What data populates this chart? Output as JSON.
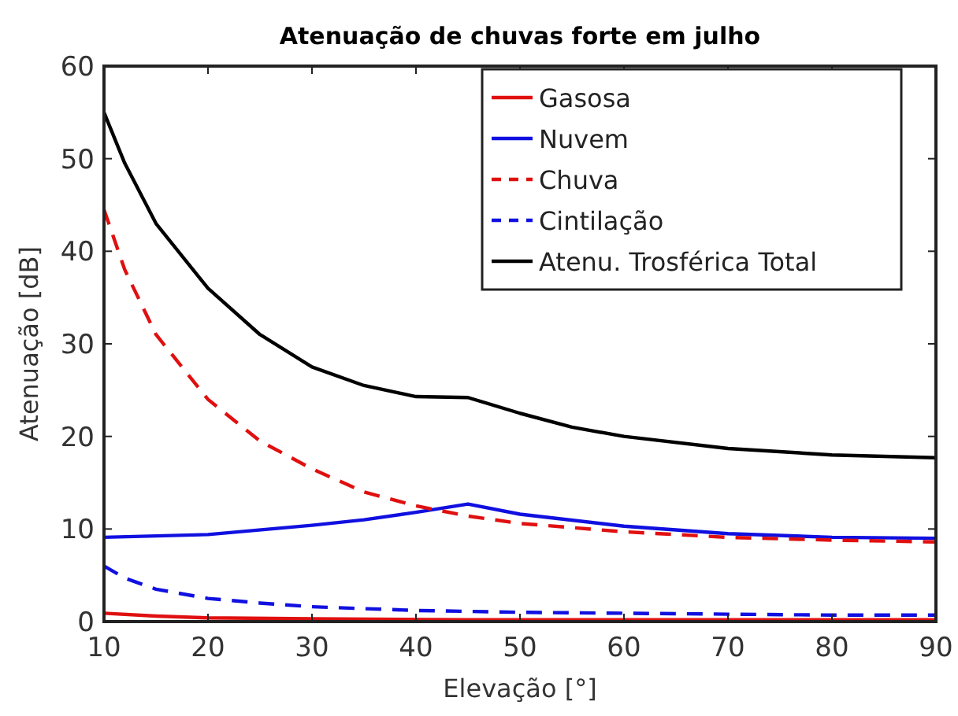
{
  "chart_data": {
    "type": "line",
    "title": "Atenuação de chuvas forte em julho",
    "xlabel": "Elevação  [°]",
    "ylabel": "Atenuação  [dB]",
    "xlim": [
      10,
      90
    ],
    "xticks": [
      10,
      20,
      30,
      40,
      50,
      60,
      70,
      80,
      90
    ],
    "ylim": [
      0,
      60
    ],
    "yticks": [
      0,
      10,
      20,
      30,
      40,
      50,
      60
    ],
    "grid": false,
    "legend": "top right",
    "marker": "none",
    "series": [
      {
        "name": "Gasosa",
        "color": "#e01010",
        "line_style": "solid",
        "x": [
          10,
          15,
          20,
          30,
          45,
          60,
          90
        ],
        "values": [
          0.9,
          0.6,
          0.4,
          0.3,
          0.2,
          0.2,
          0.2
        ]
      },
      {
        "name": "Nuvem",
        "color": "#1010e0",
        "line_style": "solid",
        "x": [
          10,
          20,
          30,
          35,
          40,
          45,
          50,
          60,
          70,
          80,
          90
        ],
        "values": [
          9.1,
          9.4,
          10.4,
          11,
          11.8,
          12.7,
          11.6,
          10.3,
          9.5,
          9.1,
          9.0
        ]
      },
      {
        "name": "Chuva",
        "color": "#e01010",
        "line_style": "dashed",
        "x": [
          10,
          12,
          15,
          20,
          25,
          30,
          35,
          40,
          45,
          50,
          60,
          70,
          80,
          90
        ],
        "values": [
          44.5,
          38,
          31,
          24,
          19.5,
          16.5,
          14,
          12.5,
          11.4,
          10.6,
          9.7,
          9.1,
          8.8,
          8.6
        ]
      },
      {
        "name": "Cintilação",
        "color": "#1010e0",
        "line_style": "dashed",
        "x": [
          10,
          12,
          15,
          20,
          25,
          30,
          40,
          50,
          60,
          70,
          80,
          90
        ],
        "values": [
          6,
          4.7,
          3.5,
          2.5,
          2,
          1.6,
          1.2,
          1,
          0.9,
          0.8,
          0.7,
          0.7
        ]
      },
      {
        "name": "Atenu. Trosférica Total",
        "color": "#000000",
        "line_style": "solid",
        "x": [
          10,
          12,
          15,
          20,
          25,
          30,
          35,
          40,
          45,
          50,
          55,
          60,
          70,
          80,
          90
        ],
        "values": [
          55,
          49.5,
          43,
          36,
          31,
          27.5,
          25.5,
          24.3,
          24.2,
          22.5,
          21,
          20,
          18.7,
          18,
          17.7
        ]
      }
    ]
  }
}
